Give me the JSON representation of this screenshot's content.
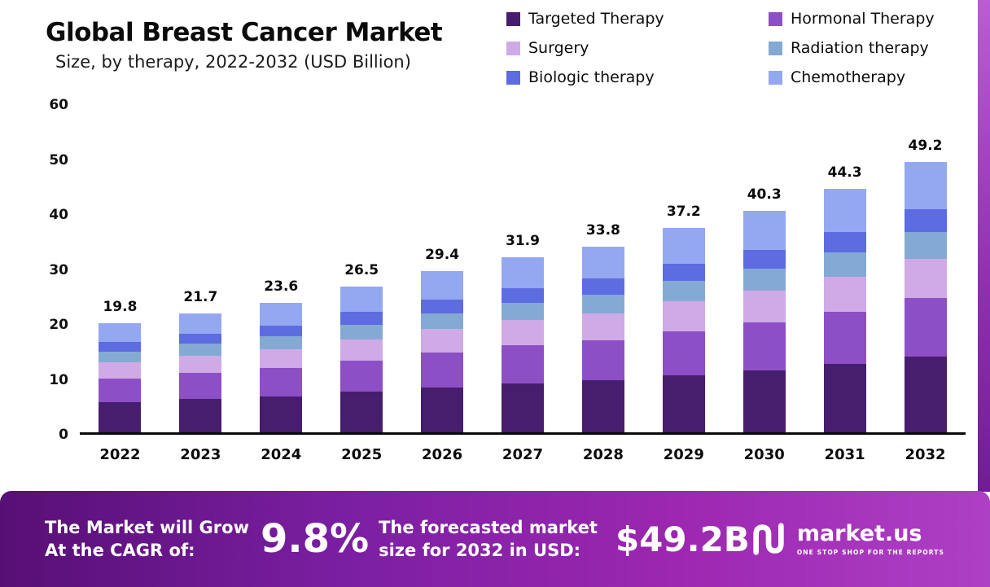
{
  "chart_data": {
    "type": "bar",
    "stacked": true,
    "title": "Global Breast Cancer Market",
    "subtitle": "Size, by therapy, 2022-2032 (USD Billion)",
    "categories": [
      "2022",
      "2023",
      "2024",
      "2025",
      "2026",
      "2027",
      "2028",
      "2029",
      "2030",
      "2031",
      "2032"
    ],
    "totals": [
      "19.8",
      "21.7",
      "23.6",
      "26.5",
      "29.4",
      "31.9",
      "33.8",
      "37.2",
      "40.3",
      "44.3",
      "49.2"
    ],
    "series": [
      {
        "name": "Targeted Therapy",
        "color": "#471d6e",
        "values": [
          5.5,
          6.1,
          6.6,
          7.4,
          8.2,
          8.9,
          9.5,
          10.4,
          11.3,
          12.4,
          13.8
        ]
      },
      {
        "name": "Hormonal Therapy",
        "color": "#8c4fc6",
        "values": [
          4.3,
          4.7,
          5.1,
          5.7,
          6.3,
          6.9,
          7.3,
          8.0,
          8.7,
          9.5,
          10.6
        ]
      },
      {
        "name": "Surgery",
        "color": "#cfaae6",
        "values": [
          2.9,
          3.1,
          3.4,
          3.8,
          4.3,
          4.6,
          4.9,
          5.4,
          5.8,
          6.4,
          7.1
        ]
      },
      {
        "name": "Radiation therapy",
        "color": "#84aad4",
        "values": [
          2.0,
          2.2,
          2.4,
          2.7,
          2.9,
          3.2,
          3.4,
          3.7,
          4.0,
          4.4,
          4.9
        ]
      },
      {
        "name": "Biologic therapy",
        "color": "#5d6ce0",
        "values": [
          1.7,
          1.8,
          2.0,
          2.3,
          2.5,
          2.7,
          2.9,
          3.2,
          3.4,
          3.8,
          4.2
        ]
      },
      {
        "name": "Chemotherapy",
        "color": "#94a7f1",
        "values": [
          3.4,
          3.8,
          4.1,
          4.6,
          5.2,
          5.6,
          5.8,
          6.5,
          7.1,
          7.8,
          8.6
        ]
      }
    ],
    "xlabel": "",
    "ylabel": "",
    "ylim": [
      0,
      60
    ],
    "yticks": [
      0,
      10,
      20,
      30,
      40,
      50,
      60
    ],
    "grid": false,
    "legend_position": "top-right"
  },
  "footer": {
    "cagr_label_line1": "The Market will Grow",
    "cagr_label_line2": "At the CAGR of:",
    "cagr_value": "9.8%",
    "forecast_label_line1": "The forecasted market",
    "forecast_label_line2": "size for 2032 in USD:",
    "forecast_value": "$49.2B",
    "brand": "market.us",
    "brand_tagline": "ONE STOP SHOP FOR THE REPORTS"
  }
}
